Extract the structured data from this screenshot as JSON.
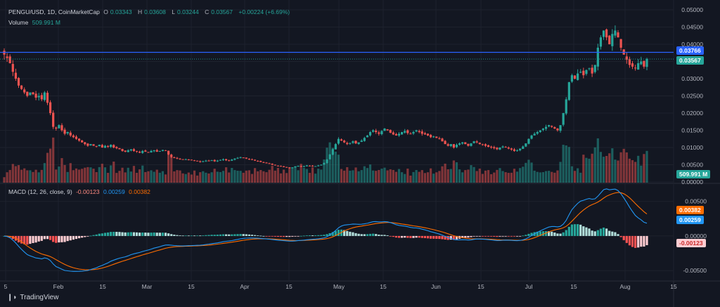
{
  "header": {
    "symbol": "PENGU/USD, 1D, CoinMarketCap",
    "o_label": "O",
    "o_value": "0.03343",
    "h_label": "H",
    "h_value": "0.03608",
    "l_label": "L",
    "l_value": "0.03244",
    "c_label": "C",
    "c_value": "0.03567",
    "change": "+0.00224 (+6.69%)",
    "volume_label": "Volume",
    "volume_value": "509.991 M"
  },
  "macd_header": {
    "title": "MACD (12, 26, close, 9)",
    "hist": "-0.00123",
    "macd": "0.00259",
    "signal": "0.00382"
  },
  "price_tags": {
    "line": "0.03766",
    "close": "0.03567",
    "volume": "509.991 M",
    "signal": "0.00382",
    "macd": "0.00259",
    "hist": "-0.00123"
  },
  "footer": {
    "brand": "TradingView"
  },
  "colors": {
    "background": "#131722",
    "up": "#26a69a",
    "down": "#ef5350",
    "hline": "#2962ff",
    "macd_line": "#2196f3",
    "signal_line": "#ff6d00",
    "hist_up_strong": "#26a69a",
    "hist_up_weak": "#b2dfdb",
    "hist_down_strong": "#ff5252",
    "hist_down_weak": "#ffcdd2"
  },
  "chart_data": [
    {
      "type": "candlestick",
      "title": "PENGU/USD, 1D, CoinMarketCap",
      "ylim": [
        0,
        0.05
      ],
      "y_ticks": [
        "0.05000",
        "0.04500",
        "0.04000",
        "0.03500",
        "0.03000",
        "0.02500",
        "0.02000",
        "0.01500",
        "0.01000",
        "0.00500",
        "0.00000"
      ],
      "x_ticks": [
        "5",
        "Feb",
        "15",
        "Mar",
        "15",
        "Apr",
        "15",
        "May",
        "15",
        "Jun",
        "15",
        "Jul",
        "15",
        "Aug",
        "15"
      ],
      "horizontal_line": 0.03766,
      "close_price": [
        0.037,
        0.036,
        0.0345,
        0.032,
        0.03,
        0.028,
        0.027,
        0.026,
        0.025,
        0.026,
        0.0255,
        0.0245,
        0.025,
        0.024,
        0.026,
        0.023,
        0.02,
        0.016,
        0.0155,
        0.0165,
        0.015,
        0.014,
        0.0145,
        0.0135,
        0.013,
        0.0125,
        0.012,
        0.0115,
        0.011,
        0.0105,
        0.011,
        0.0105,
        0.0103,
        0.0108,
        0.01,
        0.0105,
        0.0102,
        0.0108,
        0.01,
        0.0098,
        0.0095,
        0.009,
        0.0088,
        0.0092,
        0.0095,
        0.009,
        0.0088,
        0.0085,
        0.009,
        0.0088,
        0.0086,
        0.009,
        0.0092,
        0.0088,
        0.009,
        0.0093,
        0.0091,
        0.008,
        0.0072,
        0.007,
        0.0068,
        0.0066,
        0.0065,
        0.0066,
        0.0064,
        0.0063,
        0.0061,
        0.006,
        0.0058,
        0.006,
        0.0062,
        0.0061,
        0.0063,
        0.006,
        0.0062,
        0.0064,
        0.0066,
        0.0063,
        0.0062,
        0.0065,
        0.0068,
        0.007,
        0.0072,
        0.007,
        0.0068,
        0.0066,
        0.0065,
        0.0062,
        0.006,
        0.0058,
        0.0056,
        0.0055,
        0.0053,
        0.005,
        0.0048,
        0.0046,
        0.0045,
        0.0043,
        0.0042,
        0.004,
        0.0042,
        0.0045,
        0.0047,
        0.0044,
        0.0046,
        0.0048,
        0.0047,
        0.0045,
        0.0046,
        0.0048,
        0.005,
        0.0055,
        0.0065,
        0.008,
        0.0095,
        0.011,
        0.0125,
        0.012,
        0.0115,
        0.011,
        0.0113,
        0.0118,
        0.0112,
        0.0115,
        0.012,
        0.0128,
        0.0135,
        0.0145,
        0.015,
        0.0145,
        0.014,
        0.0148,
        0.0155,
        0.015,
        0.0143,
        0.0138,
        0.0135,
        0.014,
        0.0145,
        0.0148,
        0.0142,
        0.014,
        0.0145,
        0.015,
        0.0145,
        0.014,
        0.0138,
        0.0135,
        0.013,
        0.0132,
        0.0128,
        0.0125,
        0.0118,
        0.011,
        0.0105,
        0.011,
        0.01,
        0.0108,
        0.0112,
        0.0115,
        0.011,
        0.0105,
        0.0112,
        0.0118,
        0.0115,
        0.011,
        0.0108,
        0.0105,
        0.0102,
        0.01,
        0.0098,
        0.0095,
        0.01,
        0.0103,
        0.01,
        0.0097,
        0.0094,
        0.009,
        0.0092,
        0.0097,
        0.0103,
        0.0112,
        0.0125,
        0.0135,
        0.014,
        0.0145,
        0.015,
        0.0155,
        0.016,
        0.0165,
        0.016,
        0.0155,
        0.015,
        0.0165,
        0.02,
        0.024,
        0.029,
        0.031,
        0.03,
        0.0315,
        0.032,
        0.031,
        0.0325,
        0.033,
        0.0315,
        0.034,
        0.039,
        0.042,
        0.044,
        0.042,
        0.04,
        0.043,
        0.044,
        0.042,
        0.039,
        0.037,
        0.0355,
        0.034,
        0.0335,
        0.033,
        0.0345,
        0.035,
        0.0335,
        0.0357
      ],
      "volume_ylim": [
        0,
        0.6
      ],
      "volume_unit": "B"
    },
    {
      "type": "macd",
      "title": "MACD (12, 26, close, 9)",
      "ylim": [
        -0.0063,
        0.0075
      ],
      "y_ticks": [
        "0.00500",
        "0.00000",
        "-0.00500"
      ],
      "last": {
        "histogram": -0.00123,
        "macd": 0.00259,
        "signal": 0.00382
      }
    }
  ]
}
